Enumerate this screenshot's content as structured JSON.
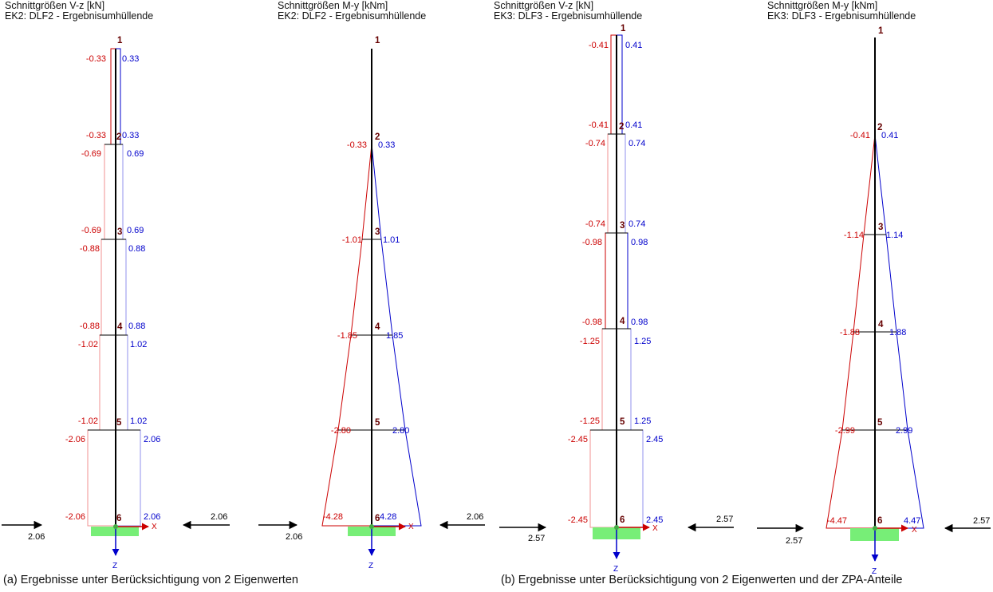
{
  "panels": [
    {
      "id": "p1",
      "title_line1": "Schnittgrößen V-z [kN]",
      "title_line2": "EK2: DLF2 - Ergebnisumhüllende"
    },
    {
      "id": "p2",
      "title_line1": "Schnittgrößen M-y [kNm]",
      "title_line2": "EK2: DLF2 - Ergebnisumhüllende"
    },
    {
      "id": "p3",
      "title_line1": "Schnittgrößen V-z [kN]",
      "title_line2": "EK3: DLF3 - Ergebnisumhüllende"
    },
    {
      "id": "p4",
      "title_line1": "Schnittgrößen M-y [kNm]",
      "title_line2": "EK3: DLF3 - Ergebnisumhüllende"
    }
  ],
  "node_numbers": [
    "1",
    "2",
    "3",
    "4",
    "5",
    "6"
  ],
  "axis_labels": {
    "x": "X",
    "z": "Z"
  },
  "panel1_labels": {
    "n1": {
      "neg": "-0.33",
      "pos": "0.33"
    },
    "n2": {
      "neg_above": "-0.33",
      "pos_above": "0.33",
      "neg_below": "-0.69",
      "pos_below": "0.69"
    },
    "n3": {
      "neg_above": "-0.69",
      "pos_above": "0.69",
      "neg_below": "-0.88",
      "pos_below": "0.88"
    },
    "n4": {
      "neg_above": "-0.88",
      "pos_above": "0.88",
      "neg_below": "-1.02",
      "pos_below": "1.02"
    },
    "n5": {
      "neg_above": "-1.02",
      "pos_above": "1.02",
      "neg_below": "-2.06",
      "pos_below": "2.06"
    },
    "n6": {
      "neg": "-2.06",
      "pos": "2.06"
    }
  },
  "panel2_labels": {
    "n2": {
      "neg": "-0.33",
      "pos": "0.33"
    },
    "n3": {
      "neg": "-1.01",
      "pos": "1.01"
    },
    "n4": {
      "neg": "-1.85",
      "pos": "1.85"
    },
    "n5": {
      "neg": "-2.80",
      "pos": "2.80"
    },
    "n6": {
      "neg": "-4.28",
      "pos": "4.28"
    }
  },
  "panel3_labels": {
    "n1": {
      "neg": "-0.41",
      "pos": "0.41"
    },
    "n2": {
      "neg_above": "-0.41",
      "pos_above": "0.41",
      "neg_below": "-0.74",
      "pos_below": "0.74"
    },
    "n3": {
      "neg_above": "-0.74",
      "pos_above": "0.74",
      "neg_below": "-0.98",
      "pos_below": "0.98"
    },
    "n4": {
      "neg_above": "-0.98",
      "pos_above": "0.98",
      "neg_below": "-1.25",
      "pos_below": "1.25"
    },
    "n5": {
      "neg_above": "-1.25",
      "pos_above": "1.25",
      "neg_below": "-2.45",
      "pos_below": "2.45"
    },
    "n6": {
      "neg": "-2.45",
      "pos": "2.45"
    }
  },
  "panel4_labels": {
    "n2": {
      "neg": "-0.41",
      "pos": "0.41"
    },
    "n3": {
      "neg": "-1.14",
      "pos": "1.14"
    },
    "n4": {
      "neg": "-1.88",
      "pos": "1.88"
    },
    "n5": {
      "neg": "-2.99",
      "pos": "2.99"
    },
    "n6": {
      "neg": "-4.47",
      "pos": "4.47"
    }
  },
  "reaction_labels": {
    "p1_left": "2.06",
    "p1_right": "2.06",
    "p2_left": "2.06",
    "p2_right": "2.06",
    "p3_left": "2.57",
    "p3_right": "2.57",
    "p4_left": "2.57",
    "p4_right": "2.57"
  },
  "captions": {
    "a": "(a) Ergebnisse unter Berücksichtigung von 2 Eigenwerten",
    "b": "(b) Ergebnisse unter Berücksichtigung von 2 Eigenwerten und der ZPA-Anteile"
  },
  "colors": {
    "negative": "#cc0000",
    "positive": "#0000cc",
    "member": "#000000",
    "support": "#77ee77",
    "reaction": "#000000",
    "node_label": "#660000",
    "light_red": "#f09090",
    "light_blue": "#9090ee"
  }
}
